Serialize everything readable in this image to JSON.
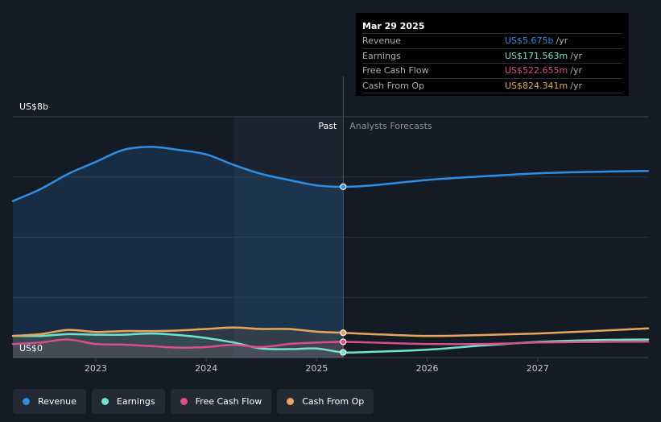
{
  "chart_data": {
    "type": "line",
    "y_axis": {
      "top_label": "US$8b",
      "bottom_label": "US$0",
      "ylim": [
        0,
        8
      ]
    },
    "x_axis": {
      "ticks": [
        2023,
        2024,
        2025,
        2026,
        2027
      ],
      "xlim": [
        2022.25,
        2028.0
      ]
    },
    "past_label": "Past",
    "forecast_label": "Analysts Forecasts",
    "divider_x": 2025.24,
    "grid": true,
    "legend_position": "bottom-left",
    "series": [
      {
        "name": "Revenue",
        "color": "#2d8ee6",
        "points": [
          [
            2022.25,
            5.2
          ],
          [
            2022.5,
            5.6
          ],
          [
            2022.75,
            6.1
          ],
          [
            2023.0,
            6.5
          ],
          [
            2023.25,
            6.9
          ],
          [
            2023.5,
            7.0
          ],
          [
            2023.75,
            6.9
          ],
          [
            2024.0,
            6.75
          ],
          [
            2024.25,
            6.4
          ],
          [
            2024.5,
            6.1
          ],
          [
            2024.75,
            5.9
          ],
          [
            2025.0,
            5.72
          ],
          [
            2025.24,
            5.675
          ],
          [
            2025.5,
            5.72
          ],
          [
            2026.0,
            5.9
          ],
          [
            2026.5,
            6.02
          ],
          [
            2027.0,
            6.12
          ],
          [
            2027.5,
            6.17
          ],
          [
            2028.0,
            6.2
          ]
        ]
      },
      {
        "name": "Earnings",
        "color": "#6fe3cf",
        "points": [
          [
            2022.25,
            0.72
          ],
          [
            2022.5,
            0.72
          ],
          [
            2022.75,
            0.78
          ],
          [
            2023.0,
            0.76
          ],
          [
            2023.25,
            0.76
          ],
          [
            2023.5,
            0.8
          ],
          [
            2023.75,
            0.75
          ],
          [
            2024.0,
            0.65
          ],
          [
            2024.25,
            0.5
          ],
          [
            2024.5,
            0.3
          ],
          [
            2024.75,
            0.28
          ],
          [
            2025.0,
            0.3
          ],
          [
            2025.24,
            0.172
          ],
          [
            2025.5,
            0.19
          ],
          [
            2026.0,
            0.26
          ],
          [
            2026.5,
            0.4
          ],
          [
            2027.0,
            0.52
          ],
          [
            2027.5,
            0.58
          ],
          [
            2028.0,
            0.6
          ]
        ]
      },
      {
        "name": "Free Cash Flow",
        "color": "#d94f8a",
        "points": [
          [
            2022.25,
            0.45
          ],
          [
            2022.5,
            0.5
          ],
          [
            2022.75,
            0.6
          ],
          [
            2023.0,
            0.45
          ],
          [
            2023.25,
            0.43
          ],
          [
            2023.5,
            0.38
          ],
          [
            2023.75,
            0.33
          ],
          [
            2024.0,
            0.35
          ],
          [
            2024.25,
            0.42
          ],
          [
            2024.5,
            0.35
          ],
          [
            2024.75,
            0.45
          ],
          [
            2025.0,
            0.5
          ],
          [
            2025.24,
            0.523
          ],
          [
            2025.5,
            0.5
          ],
          [
            2026.0,
            0.45
          ],
          [
            2026.5,
            0.45
          ],
          [
            2027.0,
            0.5
          ],
          [
            2027.5,
            0.52
          ],
          [
            2028.0,
            0.53
          ]
        ]
      },
      {
        "name": "Cash From Op",
        "color": "#e9a65a",
        "points": [
          [
            2022.25,
            0.72
          ],
          [
            2022.5,
            0.78
          ],
          [
            2022.75,
            0.92
          ],
          [
            2023.0,
            0.85
          ],
          [
            2023.25,
            0.88
          ],
          [
            2023.5,
            0.88
          ],
          [
            2023.75,
            0.9
          ],
          [
            2024.0,
            0.95
          ],
          [
            2024.25,
            1.0
          ],
          [
            2024.5,
            0.95
          ],
          [
            2024.75,
            0.95
          ],
          [
            2025.0,
            0.86
          ],
          [
            2025.24,
            0.824
          ],
          [
            2025.5,
            0.78
          ],
          [
            2026.0,
            0.72
          ],
          [
            2026.5,
            0.75
          ],
          [
            2027.0,
            0.8
          ],
          [
            2027.5,
            0.88
          ],
          [
            2028.0,
            0.97
          ]
        ]
      }
    ]
  },
  "tooltip": {
    "date": "Mar 29 2025",
    "rows": [
      {
        "label": "Revenue",
        "value": "US$5.675b",
        "unit": "/yr",
        "color": "#2d8ee6"
      },
      {
        "label": "Earnings",
        "value": "US$171.563m",
        "unit": "/yr",
        "color": "#6fe3cf"
      },
      {
        "label": "Free Cash Flow",
        "value": "US$522.655m",
        "unit": "/yr",
        "color": "#d94f8a"
      },
      {
        "label": "Cash From Op",
        "value": "US$824.341m",
        "unit": "/yr",
        "color": "#e9a65a"
      }
    ]
  },
  "legend": [
    {
      "label": "Revenue",
      "color": "#2d8ee6"
    },
    {
      "label": "Earnings",
      "color": "#6fe3cf"
    },
    {
      "label": "Free Cash Flow",
      "color": "#d94f8a"
    },
    {
      "label": "Cash From Op",
      "color": "#e9a65a"
    }
  ]
}
